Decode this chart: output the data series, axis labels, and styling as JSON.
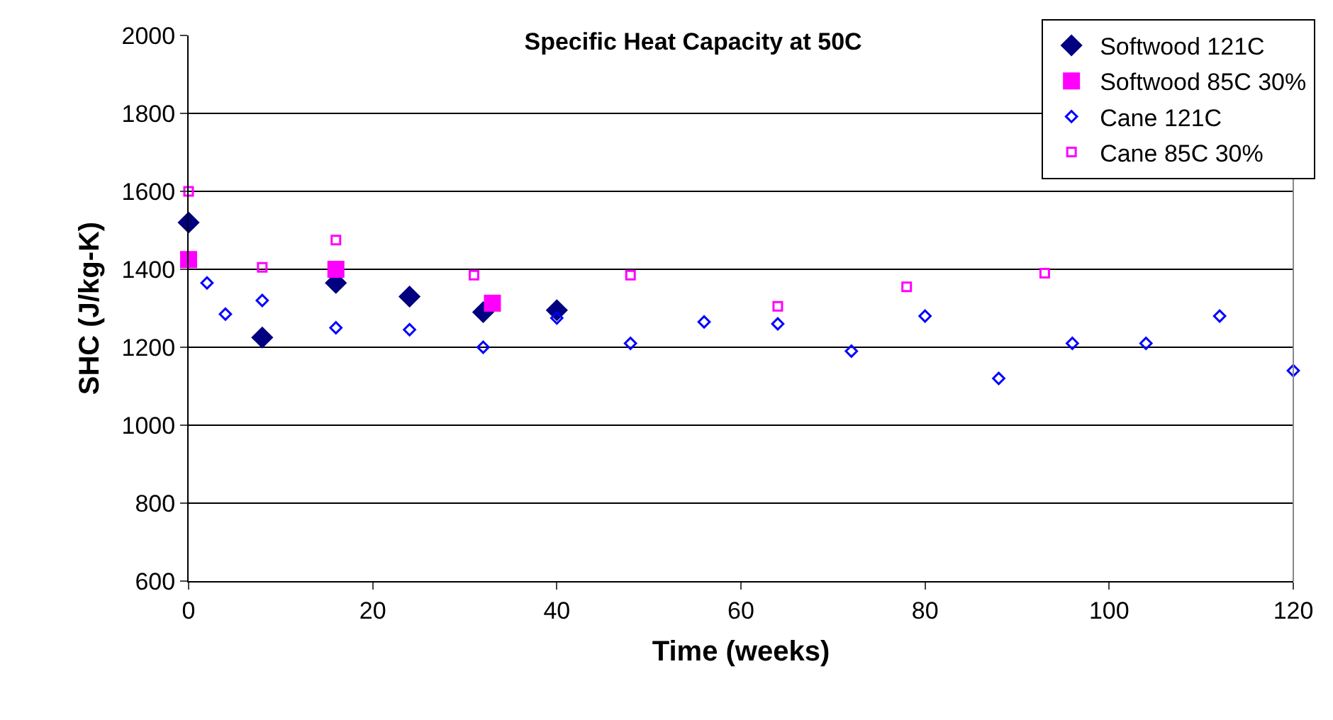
{
  "chart_data": {
    "type": "scatter",
    "title": "Specific Heat Capacity at 50C",
    "xlabel": "Time (weeks)",
    "ylabel": "SHC (J/kg-K)",
    "xlim": [
      0,
      120
    ],
    "xticks": [
      0,
      20,
      40,
      60,
      80,
      100,
      120
    ],
    "ylim": [
      600,
      2000
    ],
    "yticks": [
      600,
      800,
      1000,
      1200,
      1400,
      1600,
      1800,
      2000
    ],
    "grid": "y",
    "legend": "top right",
    "series": [
      {
        "name": "Softwood 121C",
        "color": "#000080",
        "marker": "diamond",
        "x": [
          0,
          8,
          16,
          24,
          32,
          40
        ],
        "values": [
          1520,
          1225,
          1365,
          1330,
          1290,
          1295
        ]
      },
      {
        "name": "Softwood 85C 30%",
        "color": "#ff00ff",
        "marker": "square",
        "x": [
          0,
          16,
          33
        ],
        "values": [
          1425,
          1400,
          1313
        ]
      },
      {
        "name": "Cane 121C",
        "color": "#0000ff",
        "marker": "diamond",
        "x": [
          2,
          4,
          8,
          16,
          24,
          32,
          40,
          48,
          56,
          64,
          72,
          80,
          88,
          96,
          104,
          112,
          120
        ],
        "values": [
          1365,
          1285,
          1320,
          1250,
          1245,
          1200,
          1275,
          1210,
          1265,
          1260,
          1190,
          1280,
          1120,
          1210,
          1210,
          1280,
          1140
        ]
      },
      {
        "name": "Cane 85C 30%",
        "color": "#ff00ff",
        "marker": "square",
        "x": [
          0,
          8,
          16,
          31,
          48,
          64,
          78,
          93
        ],
        "values": [
          1600,
          1405,
          1475,
          1385,
          1385,
          1305,
          1355,
          1390
        ]
      }
    ]
  }
}
